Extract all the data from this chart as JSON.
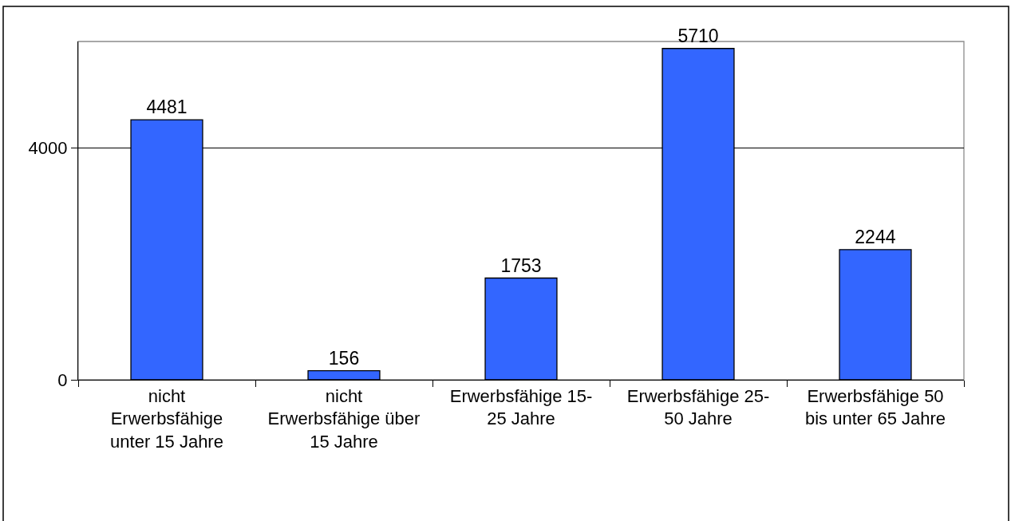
{
  "chart_data": {
    "type": "bar",
    "categories": [
      "nicht Erwerbsfähige unter 15 Jahre",
      "nicht Erwerbsfähige über 15 Jahre",
      "Erwerbsfähige 15-25 Jahre",
      "Erwerbsfähige 25-50 Jahre",
      "Erwerbsfähige 50 bis unter 65 Jahre"
    ],
    "values": [
      4481,
      156,
      1753,
      5710,
      2244
    ],
    "color": "#3366ff",
    "ylim": [
      0,
      5830
    ],
    "yticks": [
      0,
      4000
    ],
    "grid": "y",
    "data_labels": true
  }
}
